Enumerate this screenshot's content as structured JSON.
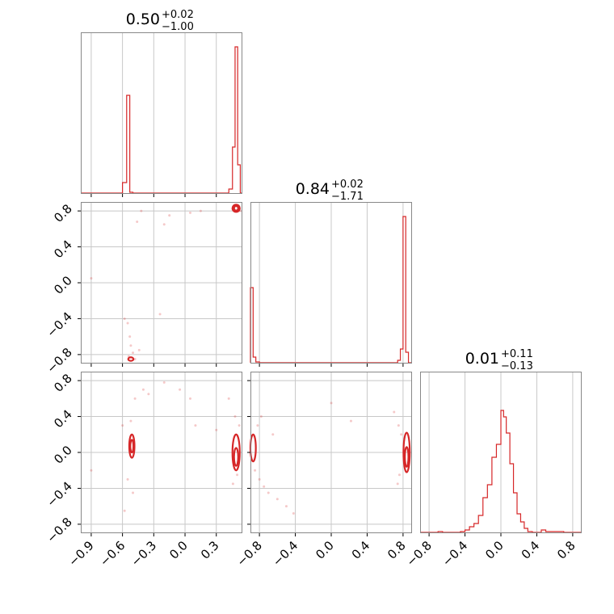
{
  "chart_data": [
    {
      "type": "histogram",
      "panel": "diag-1",
      "title": {
        "value": "0.50",
        "plus": "+0.02",
        "minus": "−1.00"
      },
      "xlim": [
        -1.0,
        0.55
      ],
      "grid": true,
      "color": "#d62728",
      "bins": [
        {
          "x0": -0.6,
          "x1": -0.56,
          "h": 0.07
        },
        {
          "x0": -0.56,
          "x1": -0.53,
          "h": 0.61
        },
        {
          "x0": -0.53,
          "x1": -0.5,
          "h": 0.01
        },
        {
          "x0": 0.42,
          "x1": 0.455,
          "h": 0.03
        },
        {
          "x0": 0.455,
          "x1": 0.48,
          "h": 0.29
        },
        {
          "x0": 0.48,
          "x1": 0.505,
          "h": 0.91
        },
        {
          "x0": 0.505,
          "x1": 0.53,
          "h": 0.18
        }
      ]
    },
    {
      "type": "histogram",
      "panel": "diag-2",
      "title": {
        "value": "0.84",
        "plus": "+0.02",
        "minus": "−1.71"
      },
      "xlim": [
        -0.9,
        0.9
      ],
      "grid": true,
      "color": "#d62728",
      "bins": [
        {
          "x0": -0.9,
          "x1": -0.87,
          "h": 0.47
        },
        {
          "x0": -0.87,
          "x1": -0.84,
          "h": 0.04
        },
        {
          "x0": -0.84,
          "x1": -0.8,
          "h": 0.01
        },
        {
          "x0": 0.74,
          "x1": 0.77,
          "h": 0.02
        },
        {
          "x0": 0.77,
          "x1": 0.8,
          "h": 0.09
        },
        {
          "x0": 0.8,
          "x1": 0.83,
          "h": 0.91
        },
        {
          "x0": 0.83,
          "x1": 0.86,
          "h": 0.07
        }
      ]
    },
    {
      "type": "histogram",
      "panel": "diag-3",
      "title": {
        "value": "0.01",
        "plus": "+0.11",
        "minus": "−0.13"
      },
      "xlim": [
        -0.9,
        0.9
      ],
      "grid": true,
      "color": "#d62728",
      "bins": [
        {
          "x0": -0.7,
          "x1": -0.65,
          "h": 0.01
        },
        {
          "x0": -0.45,
          "x1": -0.4,
          "h": 0.01
        },
        {
          "x0": -0.4,
          "x1": -0.35,
          "h": 0.02
        },
        {
          "x0": -0.35,
          "x1": -0.3,
          "h": 0.04
        },
        {
          "x0": -0.3,
          "x1": -0.25,
          "h": 0.06
        },
        {
          "x0": -0.25,
          "x1": -0.2,
          "h": 0.11
        },
        {
          "x0": -0.2,
          "x1": -0.15,
          "h": 0.22
        },
        {
          "x0": -0.15,
          "x1": -0.1,
          "h": 0.3
        },
        {
          "x0": -0.1,
          "x1": -0.05,
          "h": 0.47
        },
        {
          "x0": -0.05,
          "x1": 0.0,
          "h": 0.55
        },
        {
          "x0": 0.0,
          "x1": 0.03,
          "h": 0.76
        },
        {
          "x0": 0.03,
          "x1": 0.06,
          "h": 0.72
        },
        {
          "x0": 0.06,
          "x1": 0.1,
          "h": 0.62
        },
        {
          "x0": 0.1,
          "x1": 0.14,
          "h": 0.43
        },
        {
          "x0": 0.14,
          "x1": 0.18,
          "h": 0.25
        },
        {
          "x0": 0.18,
          "x1": 0.22,
          "h": 0.12
        },
        {
          "x0": 0.22,
          "x1": 0.26,
          "h": 0.07
        },
        {
          "x0": 0.26,
          "x1": 0.3,
          "h": 0.03
        },
        {
          "x0": 0.3,
          "x1": 0.35,
          "h": 0.01
        },
        {
          "x0": 0.35,
          "x1": 0.45,
          "h": 0.005
        },
        {
          "x0": 0.45,
          "x1": 0.5,
          "h": 0.02
        },
        {
          "x0": 0.5,
          "x1": 0.7,
          "h": 0.01
        }
      ]
    },
    {
      "type": "scatter",
      "panel": "joint-2-1",
      "xlim": [
        -1.0,
        0.55
      ],
      "ylim": [
        -0.9,
        0.9
      ],
      "grid": true,
      "color": "#d62728",
      "points": [
        [
          -0.9,
          0.05
        ],
        [
          -0.58,
          -0.4
        ],
        [
          -0.55,
          -0.45
        ],
        [
          -0.53,
          -0.6
        ],
        [
          -0.52,
          -0.7
        ],
        [
          -0.5,
          -0.78
        ],
        [
          -0.54,
          -0.82
        ],
        [
          -0.48,
          -0.85
        ],
        [
          -0.44,
          -0.75
        ],
        [
          -0.42,
          0.8
        ],
        [
          -0.46,
          0.68
        ],
        [
          -0.2,
          0.65
        ],
        [
          -0.15,
          0.75
        ],
        [
          -0.24,
          -0.35
        ],
        [
          0.05,
          0.78
        ],
        [
          0.15,
          0.8
        ],
        [
          0.5,
          0.86
        ],
        [
          0.47,
          0.84
        ],
        [
          0.53,
          0.8
        ]
      ],
      "contours": [
        {
          "cx": 0.49,
          "cy": 0.83,
          "rx": 0.035,
          "ry": 0.04
        },
        {
          "cx": 0.49,
          "cy": 0.83,
          "rx": 0.02,
          "ry": 0.025
        },
        {
          "cx": -0.52,
          "cy": -0.85,
          "rx": 0.025,
          "ry": 0.02
        }
      ]
    },
    {
      "type": "scatter",
      "panel": "joint-3-1",
      "xlim": [
        -1.0,
        0.55
      ],
      "ylim": [
        -0.9,
        0.9
      ],
      "grid": true,
      "color": "#d62728",
      "points": [
        [
          -0.9,
          -0.2
        ],
        [
          -0.6,
          0.3
        ],
        [
          -0.52,
          0.35
        ],
        [
          -0.55,
          -0.3
        ],
        [
          -0.58,
          -0.65
        ],
        [
          -0.5,
          -0.45
        ],
        [
          -0.48,
          0.6
        ],
        [
          -0.35,
          0.65
        ],
        [
          -0.4,
          0.7
        ],
        [
          -0.2,
          0.78
        ],
        [
          -0.05,
          0.7
        ],
        [
          0.05,
          0.6
        ],
        [
          0.1,
          0.3
        ],
        [
          0.3,
          0.25
        ],
        [
          0.48,
          0.4
        ],
        [
          0.52,
          0.3
        ],
        [
          0.46,
          -0.35
        ],
        [
          0.5,
          -0.25
        ],
        [
          0.42,
          0.6
        ]
      ],
      "contours": [
        {
          "cx": -0.51,
          "cy": 0.07,
          "rx": 0.025,
          "ry": 0.13
        },
        {
          "cx": -0.51,
          "cy": 0.07,
          "rx": 0.015,
          "ry": 0.07
        },
        {
          "cx": 0.49,
          "cy": 0.0,
          "rx": 0.035,
          "ry": 0.2
        },
        {
          "cx": 0.49,
          "cy": -0.05,
          "rx": 0.02,
          "ry": 0.1
        }
      ]
    },
    {
      "type": "scatter",
      "panel": "joint-3-2",
      "xlim": [
        -0.9,
        0.9
      ],
      "ylim": [
        -0.9,
        0.9
      ],
      "grid": true,
      "color": "#d62728",
      "points": [
        [
          -0.85,
          -0.2
        ],
        [
          -0.8,
          -0.3
        ],
        [
          -0.75,
          -0.38
        ],
        [
          -0.7,
          -0.45
        ],
        [
          -0.6,
          -0.52
        ],
        [
          -0.5,
          -0.6
        ],
        [
          -0.42,
          -0.68
        ],
        [
          -0.82,
          0.3
        ],
        [
          -0.78,
          0.4
        ],
        [
          -0.65,
          0.2
        ],
        [
          0.0,
          0.55
        ],
        [
          0.22,
          0.35
        ],
        [
          0.7,
          0.45
        ],
        [
          0.75,
          0.3
        ],
        [
          0.78,
          0.2
        ],
        [
          0.76,
          -0.25
        ],
        [
          0.74,
          -0.35
        ]
      ],
      "contours": [
        {
          "cx": -0.87,
          "cy": 0.05,
          "rx": 0.03,
          "ry": 0.15
        },
        {
          "cx": 0.84,
          "cy": 0.0,
          "rx": 0.035,
          "ry": 0.22
        },
        {
          "cx": 0.84,
          "cy": -0.05,
          "rx": 0.02,
          "ry": 0.11
        }
      ]
    }
  ],
  "axis_ticks": {
    "x1": [
      "−0.9",
      "−0.6",
      "−0.3",
      "0.0",
      "0.3"
    ],
    "x2": [
      "−0.8",
      "−0.4",
      "0.0",
      "0.4",
      "0.8"
    ],
    "x3": [
      "−0.8",
      "−0.4",
      "0.0",
      "0.4",
      "0.8"
    ],
    "y2": [
      "0.8",
      "0.4",
      "0.0",
      "−0.4",
      "−0.8"
    ],
    "y3": [
      "0.8",
      "0.4",
      "0.0",
      "−0.4",
      "−0.8"
    ]
  }
}
